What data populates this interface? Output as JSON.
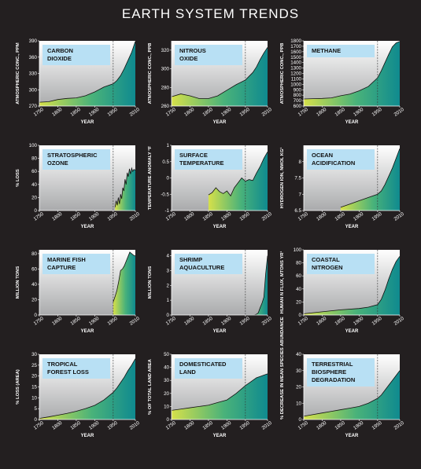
{
  "page_title": "EARTH SYSTEM TRENDS",
  "colors": {
    "background": "#231f20",
    "label_bg": "#b8e0f4",
    "fill_start": "#d6e04a",
    "fill_mid": "#49b27a",
    "fill_end": "#0f8a8f",
    "pre_bg": "#a9aaac"
  },
  "chart_data": [
    {
      "type": "area",
      "title": "CARBON\nDIOXIDE",
      "ylabel": "ATMOSPHERIC CONC., PPM",
      "xlabel": "YEAR",
      "xlim": [
        1750,
        2010
      ],
      "ylim": [
        270,
        390
      ],
      "yticks": [
        "270",
        "300",
        "330",
        "360",
        "390"
      ],
      "xticks": [
        "1750",
        "1800",
        "1850",
        "1900",
        "1950",
        "2010"
      ],
      "x": [
        1750,
        1775,
        1800,
        1825,
        1850,
        1875,
        1900,
        1925,
        1950,
        1960,
        1970,
        1980,
        1990,
        2000,
        2010
      ],
      "values": [
        277,
        278,
        282,
        284,
        285,
        289,
        296,
        305,
        311,
        317,
        326,
        339,
        354,
        369,
        389
      ]
    },
    {
      "type": "area",
      "title": "NITROUS\nOXIDE",
      "ylabel": "ATMOSPHERIC CONC., PPB",
      "xlabel": "YEAR",
      "xlim": [
        1750,
        2010
      ],
      "ylim": [
        260,
        330
      ],
      "yticks": [
        "260",
        "280",
        "300",
        "320"
      ],
      "xticks": [
        "1750",
        "1800",
        "1850",
        "1900",
        "1950",
        "2010"
      ],
      "x": [
        1750,
        1775,
        1800,
        1825,
        1850,
        1875,
        1900,
        1925,
        1950,
        1960,
        1970,
        1980,
        1990,
        2000,
        2010
      ],
      "values": [
        270,
        273,
        271,
        268,
        268,
        271,
        277,
        283,
        288,
        292,
        296,
        302,
        310,
        317,
        323
      ]
    },
    {
      "type": "area",
      "title": "METHANE",
      "ylabel": "ATMOSPHERIC CONC., PPB",
      "xlabel": "YEAR",
      "xlim": [
        1750,
        2010
      ],
      "ylim": [
        600,
        1800
      ],
      "yticks": [
        "600",
        "700",
        "800",
        "900",
        "1000",
        "1100",
        "1200",
        "1300",
        "1400",
        "1500",
        "1600",
        "1700",
        "1800"
      ],
      "xticks": [
        "1750",
        "1800",
        "1850",
        "1900",
        "1950",
        "2010"
      ],
      "x": [
        1750,
        1775,
        1800,
        1825,
        1850,
        1875,
        1900,
        1925,
        1950,
        1960,
        1970,
        1980,
        1990,
        2000,
        2010
      ],
      "values": [
        730,
        735,
        740,
        750,
        790,
        820,
        880,
        960,
        1120,
        1250,
        1400,
        1550,
        1690,
        1760,
        1790
      ]
    },
    {
      "type": "line",
      "title": "STRATOSPHERIC\nOZONE",
      "ylabel": "% LOSS",
      "xlabel": "YEAR",
      "xlim": [
        1750,
        2010
      ],
      "ylim": [
        0,
        100
      ],
      "yticks": [
        "0",
        "20",
        "40",
        "60",
        "80",
        "100"
      ],
      "xticks": [
        "1750",
        "1800",
        "1850",
        "1900",
        "1950",
        "2010"
      ],
      "x": [
        1955,
        1958,
        1961,
        1964,
        1967,
        1970,
        1973,
        1976,
        1979,
        1982,
        1985,
        1988,
        1991,
        1994,
        1997,
        2000,
        2003,
        2006,
        2010
      ],
      "values": [
        5,
        15,
        8,
        20,
        10,
        25,
        18,
        35,
        30,
        48,
        40,
        58,
        52,
        64,
        56,
        65,
        60,
        63,
        62
      ]
    },
    {
      "type": "line",
      "title": "SURFACE\nTEMPERATURE",
      "ylabel": "TEMPERATURE ANOMALY °F",
      "xlabel": "YEAR",
      "xlim": [
        1750,
        2010
      ],
      "ylim": [
        -1,
        1
      ],
      "yticks": [
        "-1",
        "-0.5",
        "0",
        "0.5",
        "1"
      ],
      "xticks": [
        "1750",
        "1800",
        "1850",
        "1900",
        "1950",
        "2010"
      ],
      "x": [
        1850,
        1860,
        1870,
        1880,
        1890,
        1900,
        1910,
        1920,
        1930,
        1940,
        1950,
        1960,
        1970,
        1980,
        1990,
        2000,
        2010
      ],
      "values": [
        -0.52,
        -0.45,
        -0.3,
        -0.42,
        -0.48,
        -0.4,
        -0.55,
        -0.3,
        -0.15,
        0.0,
        -0.1,
        -0.05,
        -0.08,
        0.15,
        0.35,
        0.6,
        0.8
      ]
    },
    {
      "type": "area",
      "title": "OCEAN\nACIDIFICATION",
      "ylabel": "HYDROGEN ION, NMOL KG¹",
      "xlabel": "YEAR",
      "xlim": [
        1750,
        2010
      ],
      "ylim": [
        6.5,
        8.5
      ],
      "yticks": [
        "6.5",
        "7",
        "7.5",
        "8"
      ],
      "xticks": [
        "1750",
        "1800",
        "1850",
        "1900",
        "1950",
        "2010"
      ],
      "x": [
        1850,
        1875,
        1900,
        1925,
        1950,
        1960,
        1970,
        1980,
        1990,
        2000,
        2010
      ],
      "values": [
        6.6,
        6.7,
        6.8,
        6.9,
        7.0,
        7.1,
        7.3,
        7.55,
        7.8,
        8.1,
        8.4
      ]
    },
    {
      "type": "line",
      "title": "MARINE FISH\nCAPTURE",
      "ylabel": "MILLION TONS",
      "xlabel": "YEAR",
      "xlim": [
        1750,
        2010
      ],
      "ylim": [
        0,
        85
      ],
      "yticks": [
        "0",
        "20",
        "40",
        "60",
        "80"
      ],
      "xticks": [
        "1750",
        "1800",
        "1850",
        "1900",
        "1950",
        "2010"
      ],
      "x": [
        1950,
        1955,
        1960,
        1965,
        1970,
        1975,
        1980,
        1985,
        1990,
        1995,
        2000,
        2005,
        2010
      ],
      "values": [
        17,
        24,
        32,
        44,
        58,
        60,
        64,
        70,
        76,
        82,
        80,
        78,
        77
      ]
    },
    {
      "type": "area",
      "title": "SHRIMP\nAQUACULTURE",
      "ylabel": "MILLION TONS",
      "xlabel": "YEAR",
      "xlim": [
        1750,
        2010
      ],
      "ylim": [
        0,
        4.4
      ],
      "yticks": [
        "0",
        "1",
        "2",
        "3",
        "4"
      ],
      "xticks": [
        "1750",
        "1800",
        "1850",
        "1900",
        "1950",
        "2010"
      ],
      "x": [
        1950,
        1960,
        1970,
        1975,
        1980,
        1985,
        1990,
        1995,
        2000,
        2005,
        2010
      ],
      "values": [
        0,
        0,
        0,
        0.01,
        0.05,
        0.15,
        0.5,
        0.8,
        1.2,
        2.8,
        4.0
      ]
    },
    {
      "type": "area",
      "title": "COASTAL\nNITROGEN",
      "ylabel": "HUMAN N FLUX, MTONS YR¹",
      "xlabel": "YEAR",
      "xlim": [
        1750,
        2010
      ],
      "ylim": [
        0,
        100
      ],
      "yticks": [
        "0",
        "20",
        "40",
        "60",
        "80",
        "100"
      ],
      "xticks": [
        "1750",
        "1800",
        "1850",
        "1900",
        "1950",
        "2010"
      ],
      "x": [
        1750,
        1800,
        1850,
        1900,
        1925,
        1950,
        1960,
        1970,
        1980,
        1990,
        2000,
        2010
      ],
      "values": [
        2,
        5,
        8,
        10,
        12,
        16,
        24,
        38,
        55,
        70,
        82,
        90
      ]
    },
    {
      "type": "area",
      "title": "TROPICAL\nFOREST LOSS",
      "ylabel": "% LOSS (AREA)",
      "xlabel": "YEAR",
      "xlim": [
        1750,
        2010
      ],
      "ylim": [
        0,
        30
      ],
      "yticks": [
        "0",
        "5",
        "10",
        "15",
        "20",
        "25",
        "30"
      ],
      "xticks": [
        "1750",
        "1800",
        "1850",
        "1900",
        "1950",
        "2010"
      ],
      "x": [
        1750,
        1775,
        1800,
        1825,
        1850,
        1875,
        1900,
        1925,
        1950,
        1960,
        1970,
        1980,
        1990,
        2000,
        2010
      ],
      "values": [
        0.5,
        1.2,
        2,
        2.8,
        3.8,
        5,
        6.5,
        9,
        12.5,
        14.5,
        17,
        19.5,
        22.5,
        25,
        28
      ]
    },
    {
      "type": "area",
      "title": "DOMESTICATED\nLAND",
      "ylabel": "% OF TOTAL LAND AREA",
      "xlabel": "YEAR",
      "xlim": [
        1750,
        2010
      ],
      "ylim": [
        0,
        50
      ],
      "yticks": [
        "0",
        "10",
        "20",
        "30",
        "40",
        "50"
      ],
      "xticks": [
        "1750",
        "1800",
        "1850",
        "1900",
        "1950",
        "2010"
      ],
      "x": [
        1750,
        1775,
        1800,
        1825,
        1850,
        1875,
        1900,
        1925,
        1950,
        1960,
        1970,
        1980,
        1990,
        2000,
        2010
      ],
      "values": [
        7,
        8,
        9,
        10,
        11,
        13,
        15,
        20,
        26,
        28,
        30,
        32,
        33,
        34,
        35
      ]
    },
    {
      "type": "area",
      "title": "TERRESTRIAL\nBIOSPHERE\nDEGRADATION",
      "ylabel": "% DECREASE IN MEAN SPECIES ABUNDANCE",
      "xlabel": "YEAR",
      "xlim": [
        1750,
        2010
      ],
      "ylim": [
        0,
        40
      ],
      "yticks": [
        "0",
        "10",
        "20",
        "30",
        "40"
      ],
      "xticks": [
        "1750",
        "1800",
        "1850",
        "1900",
        "1950",
        "2010"
      ],
      "x": [
        1750,
        1775,
        1800,
        1825,
        1850,
        1875,
        1900,
        1925,
        1950,
        1960,
        1970,
        1980,
        1990,
        2000,
        2010
      ],
      "values": [
        2,
        3,
        4,
        5,
        6,
        7,
        8,
        10,
        13,
        15,
        18,
        21,
        24,
        27,
        30
      ]
    }
  ]
}
